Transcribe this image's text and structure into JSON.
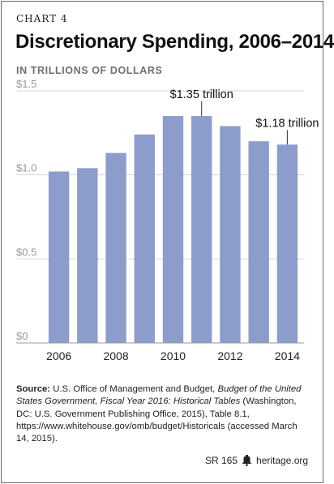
{
  "header": {
    "chart_number": "CHART 4",
    "title": "Discretionary Spending, 2006–2014",
    "subtitle": "IN TRILLIONS OF DOLLARS"
  },
  "source": {
    "label": "Source:",
    "plain_1": " U.S. Office of Management and Budget, ",
    "italic": "Budget of the United States Government, Fiscal Year 2016: Historical Tables",
    "plain_2": " (Washington, DC: U.S. Government Publishing Office, 2015), Table 8.1, https://www.whitehouse.gov/omb/budget/Historicals (accessed March 14, 2015)."
  },
  "footer": {
    "report_id": "SR 165",
    "site": "heritage.org",
    "logo_icon": "liberty-bell-icon"
  },
  "colors": {
    "bar": "#8c9dcc",
    "gridline": "#d7d7d7",
    "axis_text": "#9a9a9a"
  },
  "chart_data": {
    "type": "bar",
    "categories": [
      "2006",
      "2007",
      "2008",
      "2009",
      "2010",
      "2011",
      "2012",
      "2013",
      "2014"
    ],
    "values": [
      1.02,
      1.04,
      1.13,
      1.24,
      1.35,
      1.35,
      1.29,
      1.2,
      1.18
    ],
    "x_tick_labels": [
      "2006",
      "2008",
      "2010",
      "2012",
      "2014"
    ],
    "y_ticks": [
      0,
      0.5,
      1.0,
      1.5
    ],
    "y_tick_labels": [
      "$0",
      "$0.5",
      "$1.0",
      "$1.5"
    ],
    "ylim": [
      0,
      1.5
    ],
    "grid": true,
    "annotations": [
      {
        "category": "2011",
        "text": "$1.35 trillion"
      },
      {
        "category": "2014",
        "text": "$1.18 trillion"
      }
    ]
  }
}
